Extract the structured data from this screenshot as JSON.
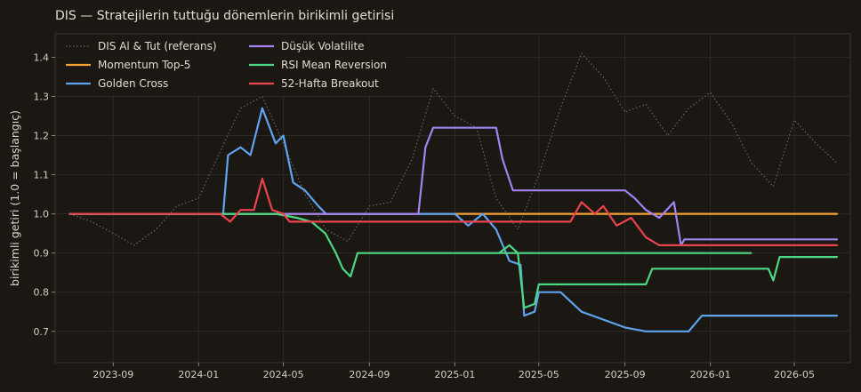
{
  "chart_data": {
    "type": "line",
    "title": "DIS — Stratejilerin tuttuğu dönemlerin birikimli getirisi",
    "xlabel": "",
    "ylabel": "birikimli getiri (1.0 = başlangıç)",
    "x_range": [
      "2023-06-10",
      "2026-07-20"
    ],
    "ylim": [
      0.62,
      1.46
    ],
    "y_ticks": [
      0.7,
      0.8,
      0.9,
      1.0,
      1.1,
      1.2,
      1.3,
      1.4
    ],
    "x_ticks": [
      "2023-09-01",
      "2024-01-01",
      "2024-05-01",
      "2024-09-01",
      "2025-01-01",
      "2025-05-01",
      "2025-09-01",
      "2026-01-01",
      "2026-05-01"
    ],
    "x_tick_labels": [
      "2023-09",
      "2024-01",
      "2024-05",
      "2024-09",
      "2025-01",
      "2025-05",
      "2025-09",
      "2026-01",
      "2026-05"
    ],
    "grid": true,
    "legend": "top-left",
    "series": [
      {
        "name": "DIS Al & Tut (referans)",
        "color": "#6e6961",
        "style": "dotted",
        "points": [
          [
            "2023-07-01",
            1.0
          ],
          [
            "2023-08-01",
            0.98
          ],
          [
            "2023-09-01",
            0.95
          ],
          [
            "2023-10-01",
            0.92
          ],
          [
            "2023-11-01",
            0.96
          ],
          [
            "2023-12-01",
            1.02
          ],
          [
            "2024-01-01",
            1.04
          ],
          [
            "2024-02-01",
            1.16
          ],
          [
            "2024-03-01",
            1.27
          ],
          [
            "2024-04-01",
            1.3
          ],
          [
            "2024-05-01",
            1.18
          ],
          [
            "2024-06-01",
            1.05
          ],
          [
            "2024-07-01",
            0.96
          ],
          [
            "2024-08-01",
            0.93
          ],
          [
            "2024-09-01",
            1.02
          ],
          [
            "2024-10-01",
            1.03
          ],
          [
            "2024-11-01",
            1.14
          ],
          [
            "2024-12-01",
            1.32
          ],
          [
            "2025-01-01",
            1.25
          ],
          [
            "2025-02-01",
            1.22
          ],
          [
            "2025-03-01",
            1.04
          ],
          [
            "2025-04-01",
            0.96
          ],
          [
            "2025-05-01",
            1.1
          ],
          [
            "2025-06-01",
            1.27
          ],
          [
            "2025-07-01",
            1.41
          ],
          [
            "2025-08-01",
            1.35
          ],
          [
            "2025-09-01",
            1.26
          ],
          [
            "2025-10-01",
            1.28
          ],
          [
            "2025-11-01",
            1.2
          ],
          [
            "2025-12-01",
            1.27
          ],
          [
            "2026-01-01",
            1.31
          ],
          [
            "2026-02-01",
            1.23
          ],
          [
            "2026-03-01",
            1.13
          ],
          [
            "2026-04-01",
            1.07
          ],
          [
            "2026-05-01",
            1.24
          ],
          [
            "2026-06-01",
            1.18
          ],
          [
            "2026-07-01",
            1.13
          ]
        ]
      },
      {
        "name": "Momentum Top-5",
        "color": "#f5a233",
        "style": "solid",
        "points": [
          [
            "2023-07-01",
            1.0
          ],
          [
            "2026-07-01",
            1.0
          ]
        ]
      },
      {
        "name": "Golden Cross",
        "color": "#5fa3ee",
        "style": "solid",
        "points": [
          [
            "2023-07-01",
            1.0
          ],
          [
            "2024-02-05",
            1.0
          ],
          [
            "2024-02-12",
            1.15
          ],
          [
            "2024-03-01",
            1.17
          ],
          [
            "2024-03-15",
            1.15
          ],
          [
            "2024-04-01",
            1.27
          ],
          [
            "2024-04-20",
            1.18
          ],
          [
            "2024-05-01",
            1.2
          ],
          [
            "2024-05-15",
            1.08
          ],
          [
            "2024-06-01",
            1.06
          ],
          [
            "2024-06-20",
            1.02
          ],
          [
            "2024-07-01",
            1.0
          ],
          [
            "2025-01-01",
            1.0
          ],
          [
            "2025-01-20",
            0.97
          ],
          [
            "2025-02-10",
            1.0
          ],
          [
            "2025-03-01",
            0.96
          ],
          [
            "2025-03-20",
            0.88
          ],
          [
            "2025-04-05",
            0.87
          ],
          [
            "2025-04-10",
            0.74
          ],
          [
            "2025-04-25",
            0.75
          ],
          [
            "2025-05-01",
            0.8
          ],
          [
            "2025-06-01",
            0.8
          ],
          [
            "2025-07-01",
            0.75
          ],
          [
            "2025-08-01",
            0.73
          ],
          [
            "2025-09-01",
            0.71
          ],
          [
            "2025-10-01",
            0.7
          ],
          [
            "2025-11-01",
            0.7
          ],
          [
            "2025-12-01",
            0.7
          ],
          [
            "2025-12-20",
            0.74
          ],
          [
            "2026-07-01",
            0.74
          ]
        ]
      },
      {
        "name": "Düşük Volatilite",
        "color": "#a283f0",
        "style": "solid",
        "points": [
          [
            "2023-07-01",
            1.0
          ],
          [
            "2024-11-10",
            1.0
          ],
          [
            "2024-11-20",
            1.17
          ],
          [
            "2024-12-01",
            1.22
          ],
          [
            "2025-03-01",
            1.22
          ],
          [
            "2025-03-10",
            1.14
          ],
          [
            "2025-03-25",
            1.06
          ],
          [
            "2025-04-01",
            1.06
          ],
          [
            "2025-09-01",
            1.06
          ],
          [
            "2025-09-15",
            1.04
          ],
          [
            "2025-10-01",
            1.01
          ],
          [
            "2025-10-20",
            0.99
          ],
          [
            "2025-11-10",
            1.03
          ],
          [
            "2025-11-20",
            0.92
          ],
          [
            "2025-11-25",
            0.935
          ],
          [
            "2026-07-01",
            0.935
          ]
        ]
      },
      {
        "name": "RSI Mean Reversion",
        "color": "#4cd782",
        "style": "solid",
        "points": [
          [
            "2023-07-01",
            1.0
          ],
          [
            "2024-04-20",
            1.0
          ],
          [
            "2024-05-20",
            0.99
          ],
          [
            "2024-06-10",
            0.98
          ],
          [
            "2024-06-30",
            0.95
          ],
          [
            "2024-07-15",
            0.9
          ],
          [
            "2024-07-25",
            0.86
          ],
          [
            "2024-08-05",
            0.84
          ],
          [
            "2024-08-15",
            0.9
          ],
          [
            "2026-02-28",
            0.9
          ],
          [
            "2025-03-05",
            0.9
          ],
          [
            "2025-03-20",
            0.92
          ],
          [
            "2025-04-01",
            0.9
          ],
          [
            "2025-04-10",
            0.76
          ],
          [
            "2025-04-25",
            0.77
          ],
          [
            "2025-05-01",
            0.82
          ],
          [
            "2025-10-01",
            0.82
          ],
          [
            "2025-10-10",
            0.86
          ],
          [
            "2026-03-25",
            0.86
          ],
          [
            "2026-04-01",
            0.83
          ],
          [
            "2026-04-10",
            0.89
          ],
          [
            "2026-07-01",
            0.89
          ]
        ]
      },
      {
        "name": "52-Hafta Breakout",
        "color": "#e9434b",
        "style": "solid",
        "points": [
          [
            "2023-07-01",
            1.0
          ],
          [
            "2024-02-01",
            1.0
          ],
          [
            "2024-02-15",
            0.98
          ],
          [
            "2024-03-01",
            1.01
          ],
          [
            "2024-03-20",
            1.01
          ],
          [
            "2024-04-01",
            1.09
          ],
          [
            "2024-04-15",
            1.01
          ],
          [
            "2024-05-01",
            1.0
          ],
          [
            "2024-05-10",
            0.98
          ],
          [
            "2025-06-15",
            0.98
          ],
          [
            "2025-07-01",
            1.03
          ],
          [
            "2025-07-20",
            1.0
          ],
          [
            "2025-08-01",
            1.02
          ],
          [
            "2025-08-20",
            0.97
          ],
          [
            "2025-09-10",
            0.99
          ],
          [
            "2025-10-01",
            0.94
          ],
          [
            "2025-10-20",
            0.92
          ],
          [
            "2026-07-01",
            0.92
          ]
        ]
      }
    ]
  }
}
